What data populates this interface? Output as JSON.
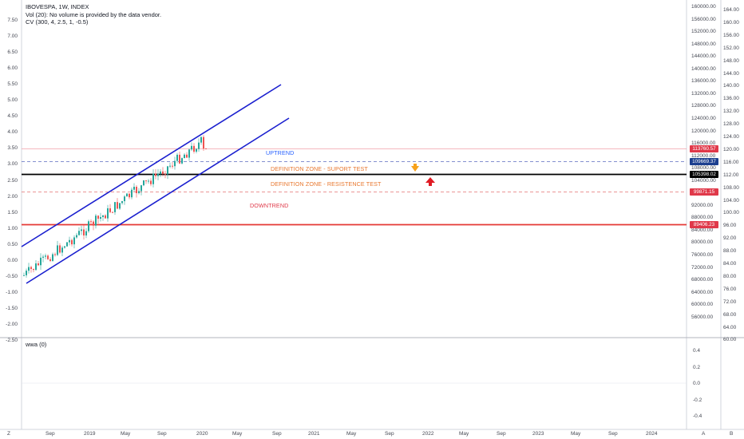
{
  "legend": {
    "title": "IBOVESPA, 1W, INDEX",
    "vol": "Vol (20): No volume is provided by the data vendor.",
    "cv": "CV (300, 4, 2.5, 1, -0.5)"
  },
  "pane2_legend": "wwa (0)",
  "left_axis": [
    "7.50",
    "7.00",
    "6.50",
    "6.00",
    "5.50",
    "5.00",
    "4.50",
    "4.00",
    "3.50",
    "3.00",
    "2.50",
    "2.00",
    "1.50",
    "1.00",
    "0.50",
    "0.00",
    "-0.50",
    "-1.00",
    "-1.50",
    "-2.00",
    "-2.50"
  ],
  "price_axis": [
    "160000.00",
    "156000.00",
    "152000.00",
    "148000.00",
    "144000.00",
    "140000.00",
    "136000.00",
    "132000.00",
    "128000.00",
    "124000.00",
    "120000.00",
    "116000.00",
    "112000.00",
    "108000.00",
    "104000.00",
    "96000.00",
    "92000.00",
    "88000.00",
    "84000.00",
    "80000.00",
    "76000.00",
    "72000.00",
    "68000.00",
    "64000.00",
    "60000.00",
    "56000.00"
  ],
  "right_axis": [
    "164.00",
    "160.00",
    "156.00",
    "152.00",
    "148.00",
    "144.00",
    "140.00",
    "136.00",
    "132.00",
    "128.00",
    "124.00",
    "120.00",
    "116.00",
    "112.00",
    "108.00",
    "104.00",
    "100.00",
    "96.00",
    "92.00",
    "88.00",
    "84.00",
    "80.00",
    "76.00",
    "72.00",
    "68.00",
    "64.00",
    "60.00"
  ],
  "pane2_axis": [
    "0.4",
    "0.2",
    "0.0",
    "-0.2",
    "-0.4"
  ],
  "time_axis": [
    "Sep",
    "2019",
    "May",
    "Sep",
    "2020",
    "May",
    "Sep",
    "2021",
    "May",
    "Sep",
    "2022",
    "May",
    "Sep",
    "2023",
    "May",
    "Sep",
    "2024"
  ],
  "price_tags": [
    {
      "label": "113760.57",
      "color": "#e0394a"
    },
    {
      "label": "109669.37",
      "color": "#1c3f8f"
    },
    {
      "label": "105398.02",
      "color": "#000000"
    },
    {
      "label": "99871.15",
      "color": "#e0394a"
    },
    {
      "label": "89406.23",
      "color": "#e0394a"
    }
  ],
  "annotations": {
    "uptrend": "UPTREND",
    "support": "DEFINITION ZONE - SUPORT TEST",
    "resistance": "DEFINITION ZONE - RESISTENCE TEST",
    "downtrend": "DOWNTREND"
  },
  "colors": {
    "up_candle": "#26a69a",
    "down_candle": "#ef5350",
    "channel": "#1a1fcf",
    "uptrend_text": "#2962ff",
    "zone_text": "#e8772e",
    "downtrend_text": "#e0394a",
    "support_arrow": "#f7a21b",
    "resistance_arrow": "#e01b24"
  },
  "corner": {
    "left": "Z",
    "right_a": "A",
    "right_b": "B"
  }
}
